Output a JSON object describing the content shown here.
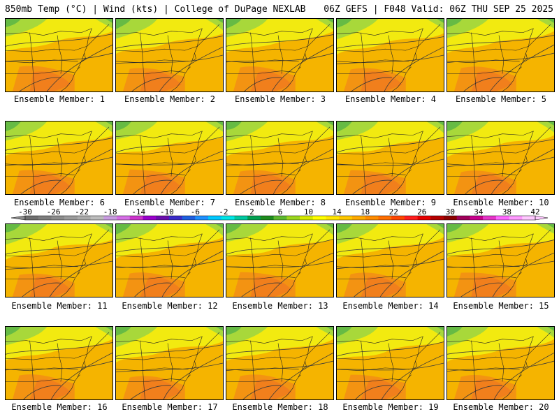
{
  "header": {
    "left": "850mb Temp (°C) | Wind (kts) | College of DuPage NEXLAB",
    "right": "06Z GEFS | F048 Valid: 06Z THU SEP 25 2025"
  },
  "panels": [
    {
      "label": "Ensemble Member: 1"
    },
    {
      "label": "Ensemble Member: 2"
    },
    {
      "label": "Ensemble Member: 3"
    },
    {
      "label": "Ensemble Member: 4"
    },
    {
      "label": "Ensemble Member: 5"
    },
    {
      "label": "Ensemble Member: 6"
    },
    {
      "label": "Ensemble Member: 7"
    },
    {
      "label": "Ensemble Member: 8"
    },
    {
      "label": "Ensemble Member: 9"
    },
    {
      "label": "Ensemble Member: 10"
    },
    {
      "label": "Ensemble Member: 11"
    },
    {
      "label": "Ensemble Member: 12"
    },
    {
      "label": "Ensemble Member: 13"
    },
    {
      "label": "Ensemble Member: 14"
    },
    {
      "label": "Ensemble Member: 15"
    },
    {
      "label": "Ensemble Member: 16"
    },
    {
      "label": "Ensemble Member: 17"
    },
    {
      "label": "Ensemble Member: 18"
    },
    {
      "label": "Ensemble Member: 19"
    },
    {
      "label": "Ensemble Member: 20"
    }
  ],
  "colorbar": {
    "labels": [
      "-30",
      "-26",
      "-22",
      "-18",
      "-14",
      "-10",
      "-6",
      "-2",
      "2",
      "6",
      "10",
      "14",
      "18",
      "22",
      "26",
      "30",
      "34",
      "38",
      "42"
    ],
    "colors": [
      "#6e6e6e",
      "#7d7d7d",
      "#8c8c8c",
      "#9b9b9b",
      "#aaaaaa",
      "#bcbcbc",
      "#c89be0",
      "#d56ee6",
      "#cc33cc",
      "#9900cc",
      "#6a0dad",
      "#3a2bc8",
      "#1e5fe0",
      "#1e90ff",
      "#00c8ff",
      "#00e6e6",
      "#00c8a0",
      "#00a050",
      "#1e8c1e",
      "#5cb82e",
      "#9ad61e",
      "#d6ea00",
      "#ffff00",
      "#ffe600",
      "#ffc800",
      "#ffaa00",
      "#ff8c00",
      "#ff6e00",
      "#ff4600",
      "#ff1e1e",
      "#e60000",
      "#b40000",
      "#8c0000",
      "#a0005a",
      "#c8008c",
      "#e633c8",
      "#ff66ff",
      "#ff99ff",
      "#ffc8ff"
    ]
  },
  "map_colors": {
    "cold": "#66bb44",
    "cool": "#a8d83a",
    "mild": "#f2ea10",
    "warm": "#f5b400",
    "hot": "#f07820",
    "border": "#222222",
    "contour": "#3a3a3a"
  }
}
